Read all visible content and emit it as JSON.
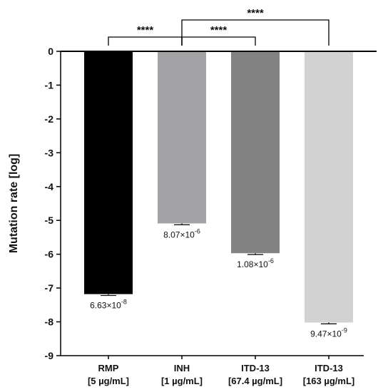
{
  "chart_data": {
    "type": "bar",
    "ylabel": "Mutation rate [log]",
    "ylim": [
      -9,
      0
    ],
    "yticks": [
      "0",
      "-1",
      "-2",
      "-3",
      "-4",
      "-5",
      "-6",
      "-7",
      "-8",
      "-9"
    ],
    "categories": [
      {
        "line1": "RMP",
        "line2": "[5 µg/mL]"
      },
      {
        "line1": "INH",
        "line2": "[1 µg/mL]"
      },
      {
        "line1": "ITD-13",
        "line2": "[67.4 µg/mL]"
      },
      {
        "line1": "ITD-13",
        "line2": "[163 µg/mL]"
      }
    ],
    "values": [
      -7.18,
      -5.09,
      -5.97,
      -8.02
    ],
    "error": [
      0.04,
      0.04,
      0.04,
      0.04
    ],
    "colors": [
      "#000000",
      "#a3a3a6",
      "#828282",
      "#d2d2d2"
    ],
    "value_labels": [
      {
        "mantissa": "6.63×10",
        "exp": "-8"
      },
      {
        "mantissa": "8.07×10",
        "exp": "-6"
      },
      {
        "mantissa": "1.08×10",
        "exp": "-6"
      },
      {
        "mantissa": "9.47×10",
        "exp": "-9"
      }
    ],
    "significance": [
      {
        "from": 0,
        "to": 1,
        "label": "****"
      },
      {
        "from": 1,
        "to": 2,
        "label": "****"
      },
      {
        "from": 1,
        "to": 3,
        "label": "****"
      }
    ]
  }
}
